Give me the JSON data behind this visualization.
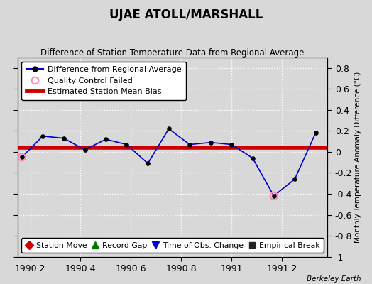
{
  "title": "UJAE ATOLL/MARSHALL",
  "subtitle": "Difference of Station Temperature Data from Regional Average",
  "ylabel_right": "Monthly Temperature Anomaly Difference (°C)",
  "background_color": "#d8d8d8",
  "plot_bg_color": "#d8d8d8",
  "xlim": [
    1990.15,
    1991.38
  ],
  "ylim": [
    -1.0,
    0.9
  ],
  "yticks": [
    -1.0,
    -0.8,
    -0.6,
    -0.4,
    -0.2,
    0.0,
    0.2,
    0.4,
    0.6,
    0.8
  ],
  "xticks": [
    1990.2,
    1990.4,
    1990.6,
    1990.8,
    1991.0,
    1991.2
  ],
  "xticklabels": [
    "1990.2",
    "1990.4",
    "1990.6",
    "1990.8",
    "1991",
    "1991.2"
  ],
  "main_line_color": "#0000cc",
  "main_marker_color": "#000000",
  "bias_line_color": "#cc0000",
  "bias_value": 0.04,
  "qc_failed_color": "#ff88bb",
  "x_data": [
    1990.167,
    1990.25,
    1990.333,
    1990.417,
    1990.5,
    1990.583,
    1990.667,
    1990.75,
    1990.833,
    1990.917,
    1991.0,
    1991.083,
    1991.167,
    1991.25,
    1991.333
  ],
  "y_data": [
    -0.05,
    0.15,
    0.13,
    0.02,
    0.12,
    0.07,
    -0.11,
    0.22,
    0.07,
    0.09,
    0.07,
    -0.06,
    -0.42,
    -0.26,
    0.18
  ],
  "qc_failed_indices": [
    0,
    12
  ],
  "watermark": "Berkeley Earth",
  "legend1_labels": [
    "Difference from Regional Average",
    "Quality Control Failed",
    "Estimated Station Mean Bias"
  ],
  "legend2_labels": [
    "Station Move",
    "Record Gap",
    "Time of Obs. Change",
    "Empirical Break"
  ]
}
